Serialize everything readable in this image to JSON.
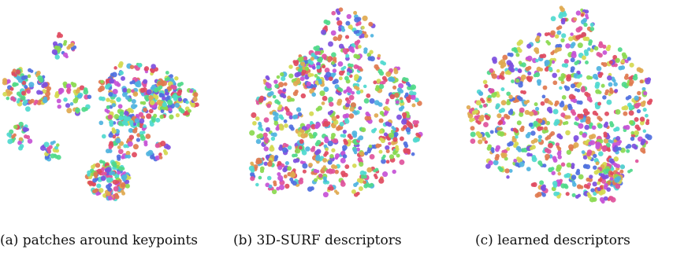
{
  "figure": {
    "captions": [
      "(a) patches around keypoints",
      "(b) 3D-SURF descriptors",
      "(c) learned descriptors"
    ]
  },
  "chart_data": [
    {
      "type": "scatter",
      "title": "",
      "caption": "(a) patches around keypoints",
      "xlabel": "",
      "ylabel": "",
      "axes_visible": false,
      "grid": false,
      "legend": "none",
      "palette": [
        "#e04a5f",
        "#e0529c",
        "#c651d6",
        "#7d4fe0",
        "#4f6fe0",
        "#4fb3e0",
        "#4fd9cf",
        "#4fd98a",
        "#8ad94f",
        "#d4d94f",
        "#e0a94f",
        "#e07a4f"
      ],
      "seed": 11,
      "clusters": [
        {
          "cx": 0.27,
          "cy": 0.2,
          "r": 0.06,
          "n": 18
        },
        {
          "cx": 0.1,
          "cy": 0.4,
          "r": 0.11,
          "n": 70
        },
        {
          "cx": 0.32,
          "cy": 0.45,
          "r": 0.08,
          "n": 30
        },
        {
          "cx": 0.07,
          "cy": 0.62,
          "r": 0.06,
          "n": 22
        },
        {
          "cx": 0.22,
          "cy": 0.7,
          "r": 0.05,
          "n": 14
        },
        {
          "cx": 0.62,
          "cy": 0.42,
          "r": 0.18,
          "n": 150
        },
        {
          "cx": 0.78,
          "cy": 0.45,
          "r": 0.12,
          "n": 70
        },
        {
          "cx": 0.55,
          "cy": 0.62,
          "r": 0.12,
          "n": 60
        },
        {
          "cx": 0.48,
          "cy": 0.83,
          "r": 0.1,
          "n": 95
        },
        {
          "cx": 0.72,
          "cy": 0.7,
          "r": 0.05,
          "n": 12
        }
      ]
    },
    {
      "type": "scatter",
      "title": "",
      "caption": "(b) 3D-SURF descriptors",
      "xlabel": "",
      "ylabel": "",
      "axes_visible": false,
      "grid": false,
      "legend": "none",
      "palette": [
        "#e04a5f",
        "#e0529c",
        "#c651d6",
        "#7d4fe0",
        "#4f6fe0",
        "#4fb3e0",
        "#4fd9cf",
        "#4fd98a",
        "#8ad94f",
        "#d4d94f",
        "#e0a94f",
        "#e07a4f"
      ],
      "seed": 23,
      "clusters": [
        {
          "cx": 0.5,
          "cy": 0.55,
          "r": 0.4,
          "n": 520
        },
        {
          "cx": 0.55,
          "cy": 0.12,
          "r": 0.12,
          "n": 40
        },
        {
          "cx": 0.2,
          "cy": 0.8,
          "r": 0.1,
          "n": 40
        },
        {
          "cx": 0.4,
          "cy": 0.3,
          "r": 0.1,
          "n": 40
        }
      ]
    },
    {
      "type": "scatter",
      "title": "",
      "caption": "(c) learned descriptors",
      "xlabel": "",
      "ylabel": "",
      "axes_visible": false,
      "grid": false,
      "legend": "none",
      "palette": [
        "#e04a5f",
        "#e0529c",
        "#c651d6",
        "#7d4fe0",
        "#4f6fe0",
        "#4fb3e0",
        "#4fd9cf",
        "#4fd98a",
        "#8ad94f",
        "#d4d94f",
        "#e0a94f",
        "#e07a4f"
      ],
      "seed": 37,
      "clusters": [
        {
          "cx": 0.5,
          "cy": 0.52,
          "r": 0.44,
          "n": 560
        },
        {
          "cx": 0.55,
          "cy": 0.1,
          "r": 0.1,
          "n": 30
        },
        {
          "cx": 0.7,
          "cy": 0.85,
          "r": 0.1,
          "n": 40
        }
      ]
    }
  ]
}
